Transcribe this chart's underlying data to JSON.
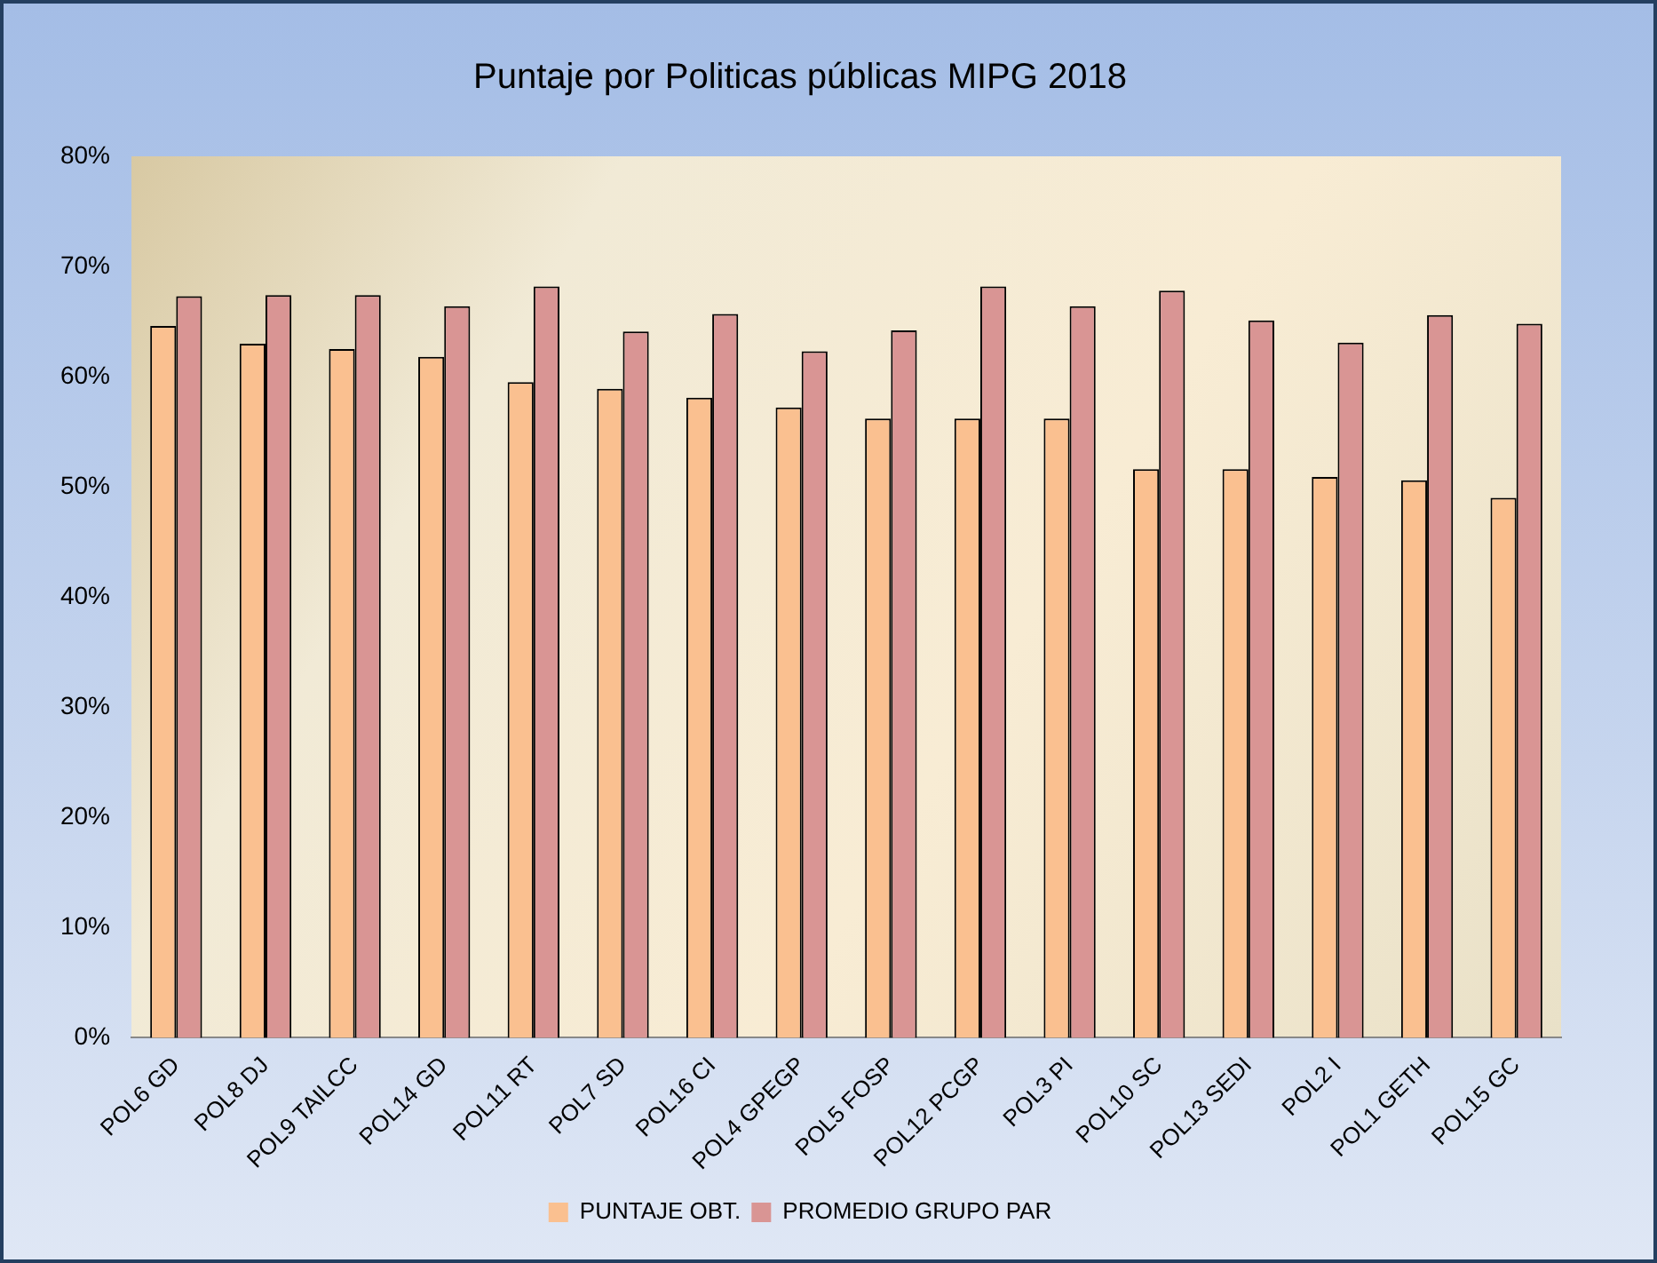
{
  "chart_data": {
    "type": "bar",
    "title": "Puntaje por Politicas públicas MIPG 2018",
    "categories": [
      "POL6 GD",
      "POL8 DJ",
      "POL9 TAILCC",
      "POL14 GD",
      "POL11 RT",
      "POL7 SD",
      "POL16 CI",
      "POL4 GPEGP",
      "POL5 FOSP",
      "POL12 PCGP",
      "POL3 PI",
      "POL10 SC",
      "POL13 SEDI",
      "POL2 I",
      "POL1 GETH",
      "POL15 GC"
    ],
    "series": [
      {
        "name": "PUNTAJE OBT.",
        "color": "#fac090",
        "values": [
          64.6,
          63.0,
          62.5,
          61.8,
          59.5,
          58.9,
          58.1,
          57.2,
          56.2,
          56.2,
          56.2,
          51.6,
          51.6,
          50.9,
          50.6,
          49.0
        ]
      },
      {
        "name": "PROMEDIO GRUPO PAR",
        "color": "#d99594",
        "values": [
          67.3,
          67.4,
          67.4,
          66.4,
          68.2,
          64.1,
          65.7,
          62.3,
          64.2,
          68.2,
          66.4,
          67.8,
          65.1,
          63.1,
          65.6,
          64.8
        ]
      }
    ],
    "ylim": [
      0,
      80
    ],
    "yticks": [
      {
        "value": 0,
        "label": "0%"
      },
      {
        "value": 10,
        "label": "10%"
      },
      {
        "value": 20,
        "label": "20%"
      },
      {
        "value": 30,
        "label": "30%"
      },
      {
        "value": 40,
        "label": "40%"
      },
      {
        "value": 50,
        "label": "50%"
      },
      {
        "value": 60,
        "label": "60%"
      },
      {
        "value": 70,
        "label": "70%"
      },
      {
        "value": 80,
        "label": "80%"
      }
    ],
    "grid": false,
    "legend": "bottom"
  }
}
